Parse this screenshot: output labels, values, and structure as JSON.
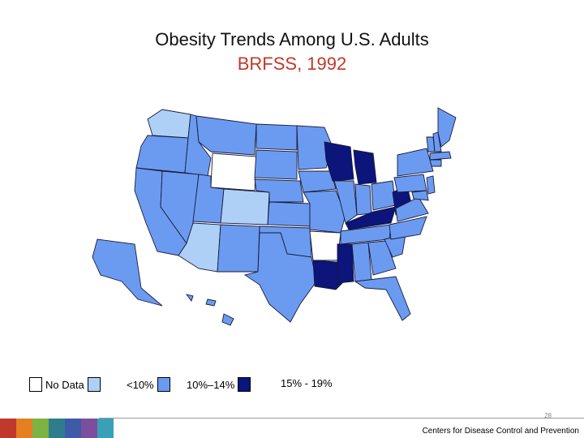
{
  "title": "Obesity Trends Among U.S. Adults",
  "subtitle": "BRFSS, 1992",
  "colors": {
    "no_data": "#ffffff",
    "lt10": "#aed0f7",
    "p10_14": "#6b9bf0",
    "p15_19": "#0b157a",
    "border": "#1a1a3a",
    "subtitle": "#c0392b"
  },
  "legend": [
    {
      "label": "No Data",
      "category": "no_data"
    },
    {
      "label": "<10%",
      "category": "lt10"
    },
    {
      "label": "10%–14%",
      "category": "p10_14"
    },
    {
      "label": "15% - 19%",
      "category": "p15_19"
    }
  ],
  "states": {
    "no_data": [
      "Wyoming",
      "Arkansas"
    ],
    "lt10": [
      "Washington",
      "Colorado",
      "Arizona"
    ],
    "p15_19": [
      "Wisconsin",
      "Michigan",
      "Kentucky",
      "West Virginia",
      "Louisiana",
      "Mississippi"
    ]
  },
  "page_number": "28",
  "footer": "Centers for Disease Control and Prevention",
  "footer_strip_colors": [
    "#c0392b",
    "#e67e22",
    "#7cb342",
    "#2e7d8c",
    "#3f5aa6",
    "#7b4f9d",
    "#3aa0b8"
  ]
}
